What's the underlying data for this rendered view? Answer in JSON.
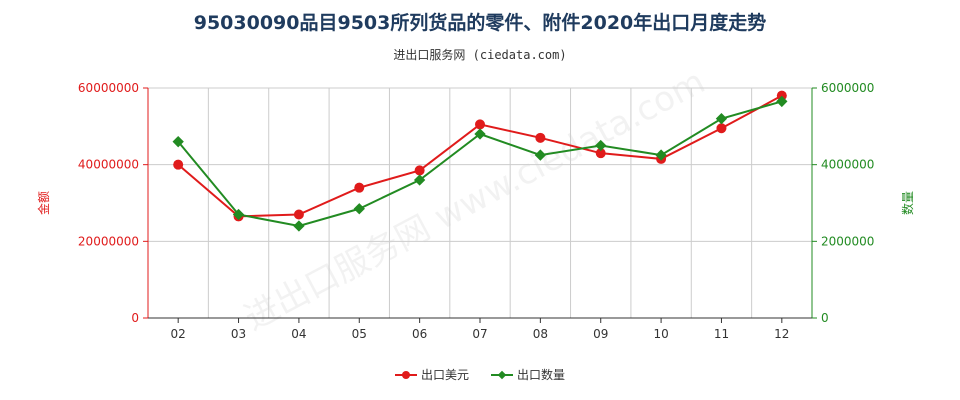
{
  "title": "95030090品目9503所列货品的零件、附件2020年出口月度走势",
  "subtitle": "进出口服务网 (ciedata.com)",
  "watermark": "进出口服务网 www.ciedata.com",
  "colors": {
    "amount": "#e01b1b",
    "quantity": "#228b22",
    "grid": "#cccccc",
    "title": "#1f3b5e"
  },
  "chart_data": {
    "type": "line",
    "categories": [
      "02",
      "03",
      "04",
      "05",
      "06",
      "07",
      "08",
      "09",
      "10",
      "11",
      "12"
    ],
    "y_left": {
      "label": "金额",
      "ticks": [
        "0",
        "20000000",
        "40000000",
        "60000000"
      ],
      "lim": [
        0,
        60000000
      ]
    },
    "y_right": {
      "label": "数量",
      "ticks": [
        "0",
        "2000000",
        "4000000",
        "6000000"
      ],
      "lim": [
        0,
        6000000
      ]
    },
    "grid": true,
    "legend_position": "bottom",
    "series": [
      {
        "name": "出口美元",
        "axis": "left",
        "marker": "circle",
        "values": [
          40000000,
          26500000,
          27000000,
          34000000,
          38500000,
          50500000,
          47000000,
          43000000,
          41500000,
          49500000,
          58000000
        ]
      },
      {
        "name": "出口数量",
        "axis": "right",
        "marker": "diamond",
        "values": [
          4600000,
          2700000,
          2400000,
          2850000,
          3600000,
          4800000,
          4250000,
          4500000,
          4250000,
          5200000,
          5650000
        ]
      }
    ]
  }
}
